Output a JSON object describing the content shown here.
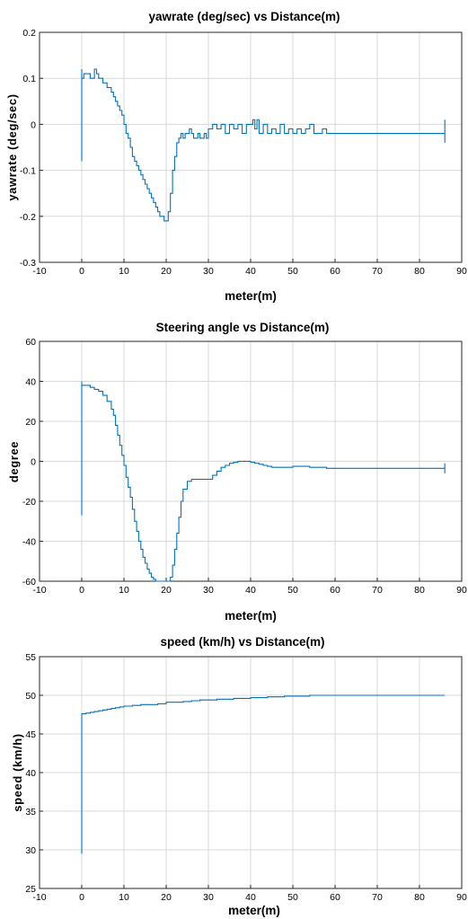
{
  "chart_data": [
    {
      "type": "line",
      "title": "yawrate (deg/sec) vs Distance(m)",
      "xlabel": "meter(m)",
      "ylabel": "yawrate (deg/sec)",
      "xlim": [
        -10,
        90
      ],
      "ylim": [
        -0.3,
        0.2
      ],
      "xticks": [
        "-10",
        "0",
        "10",
        "20",
        "30",
        "40",
        "50",
        "60",
        "70",
        "80",
        "90"
      ],
      "yticks": [
        "0.2",
        "0.1",
        "0",
        "-0.1",
        "-0.2",
        "-0.3"
      ],
      "grid": true,
      "series": [
        {
          "x": [
            0,
            0,
            0,
            0,
            0.5,
            1,
            2,
            3,
            3.5,
            4,
            5,
            6,
            7,
            7.5,
            8,
            8.5,
            9,
            9.5,
            10,
            10.5,
            11,
            11.5,
            12,
            12.5,
            13,
            13.5,
            14,
            14.5,
            15,
            15.5,
            16,
            16.5,
            17,
            17.5,
            18,
            18.5,
            19,
            19.5,
            20,
            20.5,
            21,
            21.5,
            22,
            22.5,
            23,
            23.5,
            24,
            24.5,
            25,
            25.5,
            26,
            26.5,
            27,
            27.5,
            28,
            28.5,
            29,
            29.5,
            30,
            31,
            32,
            33,
            34,
            35,
            36,
            37,
            38,
            39,
            40,
            40.5,
            41,
            41.5,
            42,
            43,
            44,
            45,
            46,
            47,
            48,
            49,
            50,
            51,
            52,
            53,
            54,
            55,
            56,
            57,
            58,
            60,
            70,
            80,
            86,
            86,
            86
          ],
          "y": [
            -0.08,
            0.12,
            0.1,
            0.1,
            0.11,
            0.11,
            0.1,
            0.12,
            0.11,
            0.1,
            0.09,
            0.08,
            0.07,
            0.06,
            0.05,
            0.04,
            0.03,
            0.02,
            0.0,
            -0.02,
            -0.03,
            -0.05,
            -0.07,
            -0.08,
            -0.09,
            -0.1,
            -0.11,
            -0.12,
            -0.13,
            -0.14,
            -0.15,
            -0.16,
            -0.17,
            -0.18,
            -0.19,
            -0.2,
            -0.2,
            -0.21,
            -0.21,
            -0.19,
            -0.15,
            -0.1,
            -0.07,
            -0.04,
            -0.03,
            -0.02,
            -0.03,
            -0.02,
            -0.02,
            -0.01,
            -0.02,
            -0.03,
            -0.03,
            -0.02,
            -0.03,
            -0.03,
            -0.02,
            -0.03,
            -0.01,
            0.0,
            -0.01,
            0.0,
            -0.02,
            0.0,
            -0.01,
            0.0,
            -0.02,
            0.0,
            0.0,
            0.01,
            -0.01,
            0.01,
            -0.02,
            0.0,
            -0.02,
            -0.01,
            -0.02,
            0.0,
            -0.02,
            -0.01,
            -0.02,
            -0.01,
            -0.02,
            -0.01,
            0.0,
            -0.02,
            -0.02,
            -0.01,
            -0.02,
            -0.02,
            -0.02,
            -0.02,
            -0.02,
            0.01,
            -0.04
          ]
        }
      ]
    },
    {
      "type": "line",
      "title": "Steering angle vs Distance(m)",
      "xlabel": "meter(m)",
      "ylabel": "degree",
      "xlim": [
        -10,
        90
      ],
      "ylim": [
        -60,
        60
      ],
      "xticks": [
        "-10",
        "0",
        "10",
        "20",
        "30",
        "40",
        "50",
        "60",
        "70",
        "80",
        "90"
      ],
      "yticks": [
        "60",
        "40",
        "20",
        "0",
        "-20",
        "-40",
        "-60"
      ],
      "grid": true,
      "series": [
        {
          "x": [
            0,
            0,
            0,
            0,
            1,
            2,
            3,
            4,
            5,
            6,
            7,
            7.5,
            8,
            8.5,
            9,
            9.5,
            10,
            10.5,
            11,
            11.5,
            12,
            12.5,
            13,
            13.5,
            14,
            14.5,
            15,
            15.5,
            16,
            16.5,
            17,
            17.5,
            18,
            18.5,
            19,
            19.5,
            20,
            20.5,
            21,
            21.5,
            22,
            22.5,
            23,
            23.5,
            24,
            25,
            26,
            27,
            28,
            29,
            30,
            31,
            32,
            33,
            34,
            35,
            36,
            37,
            38,
            39,
            40,
            41,
            42,
            43,
            44,
            45,
            46,
            48,
            50,
            52,
            54,
            56,
            58,
            60,
            70,
            80,
            86,
            86,
            86
          ],
          "y": [
            -27,
            40,
            38,
            38,
            38,
            37,
            36,
            35,
            33,
            30,
            26,
            23,
            18,
            13,
            8,
            3,
            -2,
            -8,
            -13,
            -18,
            -24,
            -30,
            -35,
            -40,
            -44,
            -48,
            -51,
            -54,
            -56,
            -58,
            -59,
            -60,
            -60,
            -60,
            -60,
            -60,
            -60,
            -60,
            -58,
            -52,
            -44,
            -36,
            -28,
            -20,
            -14,
            -10,
            -9,
            -9,
            -9,
            -9,
            -9,
            -7,
            -5,
            -3,
            -2,
            -1,
            -0.5,
            0,
            0,
            0,
            -0.5,
            -1,
            -1.5,
            -2,
            -2.5,
            -3,
            -3,
            -3,
            -2.5,
            -2.5,
            -3,
            -3,
            -3.5,
            -3.5,
            -3.5,
            -3.5,
            -3.5,
            -1,
            -6
          ]
        }
      ]
    },
    {
      "type": "line",
      "title": "speed (km/h) vs Distance(m)",
      "xlabel": "meter(m)",
      "ylabel": "speed (km/h)",
      "xlim": [
        -10,
        90
      ],
      "ylim": [
        25,
        55
      ],
      "xticks": [
        "-10",
        "0",
        "10",
        "20",
        "30",
        "40",
        "50",
        "60",
        "70",
        "80",
        "90"
      ],
      "yticks": [
        "55",
        "50",
        "45",
        "40",
        "35",
        "30",
        "25"
      ],
      "grid": true,
      "series": [
        {
          "x": [
            0,
            0,
            0,
            1,
            2,
            3,
            4,
            5,
            6,
            7,
            8,
            9,
            10,
            12,
            14,
            16,
            18,
            20,
            22,
            24,
            26,
            28,
            30,
            32,
            34,
            36,
            38,
            40,
            42,
            44,
            46,
            48,
            50,
            52,
            54,
            56,
            58,
            60,
            70,
            80,
            86
          ],
          "y": [
            29.5,
            47.5,
            47.6,
            47.7,
            47.8,
            47.9,
            48.0,
            48.1,
            48.2,
            48.3,
            48.4,
            48.5,
            48.6,
            48.7,
            48.8,
            48.8,
            48.9,
            49.1,
            49.1,
            49.2,
            49.3,
            49.4,
            49.4,
            49.5,
            49.5,
            49.6,
            49.6,
            49.7,
            49.7,
            49.8,
            49.8,
            49.9,
            49.9,
            49.9,
            50.0,
            50.0,
            50.0,
            50.0,
            50.0,
            50.0,
            50.0
          ]
        }
      ]
    }
  ]
}
